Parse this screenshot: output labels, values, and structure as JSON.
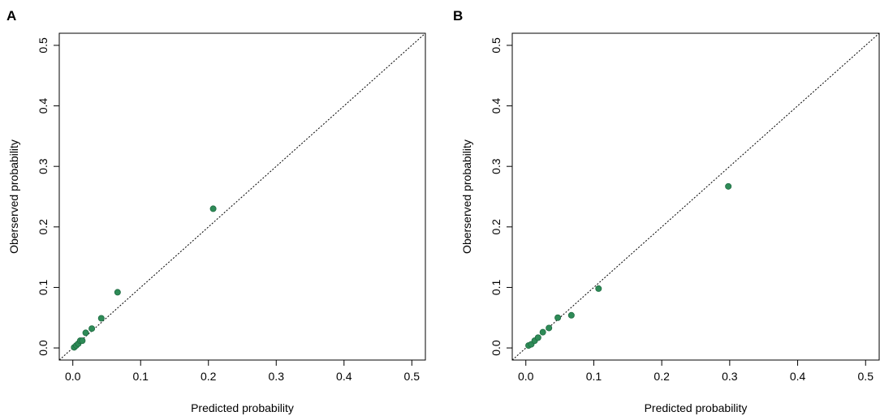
{
  "chart_data": [
    {
      "type": "scatter",
      "panel_label": "A",
      "xlabel": "Predicted probability",
      "ylabel": "Oberserved probability",
      "xlim": [
        -0.02,
        0.52
      ],
      "ylim": [
        -0.02,
        0.52
      ],
      "x_ticks": [
        0.0,
        0.1,
        0.2,
        0.3,
        0.4,
        0.5
      ],
      "y_ticks": [
        0.0,
        0.1,
        0.2,
        0.3,
        0.4,
        0.5
      ],
      "x_tick_labels": [
        "0.0",
        "0.1",
        "0.2",
        "0.3",
        "0.4",
        "0.5"
      ],
      "y_tick_labels": [
        "0.0",
        "0.1",
        "0.2",
        "0.3",
        "0.4",
        "0.5"
      ],
      "reference_line": "diagonal y=x",
      "grid": false,
      "point_color": "#2e8b57",
      "points": [
        {
          "x": 0.002,
          "y": 0.001
        },
        {
          "x": 0.005,
          "y": 0.004
        },
        {
          "x": 0.008,
          "y": 0.007
        },
        {
          "x": 0.011,
          "y": 0.012
        },
        {
          "x": 0.014,
          "y": 0.012
        },
        {
          "x": 0.019,
          "y": 0.025
        },
        {
          "x": 0.028,
          "y": 0.032
        },
        {
          "x": 0.042,
          "y": 0.049
        },
        {
          "x": 0.066,
          "y": 0.092
        },
        {
          "x": 0.207,
          "y": 0.23
        }
      ]
    },
    {
      "type": "scatter",
      "panel_label": "B",
      "xlabel": "Predicted probability",
      "ylabel": "Oberserved probability",
      "xlim": [
        -0.02,
        0.52
      ],
      "ylim": [
        -0.02,
        0.52
      ],
      "x_ticks": [
        0.0,
        0.1,
        0.2,
        0.3,
        0.4,
        0.5
      ],
      "y_ticks": [
        0.0,
        0.1,
        0.2,
        0.3,
        0.4,
        0.5
      ],
      "x_tick_labels": [
        "0.0",
        "0.1",
        "0.2",
        "0.3",
        "0.4",
        "0.5"
      ],
      "y_tick_labels": [
        "0.0",
        "0.1",
        "0.2",
        "0.3",
        "0.4",
        "0.5"
      ],
      "reference_line": "diagonal y=x",
      "grid": false,
      "point_color": "#2e8b57",
      "points": [
        {
          "x": 0.004,
          "y": 0.004
        },
        {
          "x": 0.008,
          "y": 0.006
        },
        {
          "x": 0.013,
          "y": 0.012
        },
        {
          "x": 0.018,
          "y": 0.017
        },
        {
          "x": 0.025,
          "y": 0.026
        },
        {
          "x": 0.034,
          "y": 0.033
        },
        {
          "x": 0.047,
          "y": 0.05
        },
        {
          "x": 0.067,
          "y": 0.054
        },
        {
          "x": 0.107,
          "y": 0.098
        },
        {
          "x": 0.298,
          "y": 0.267
        }
      ]
    }
  ]
}
